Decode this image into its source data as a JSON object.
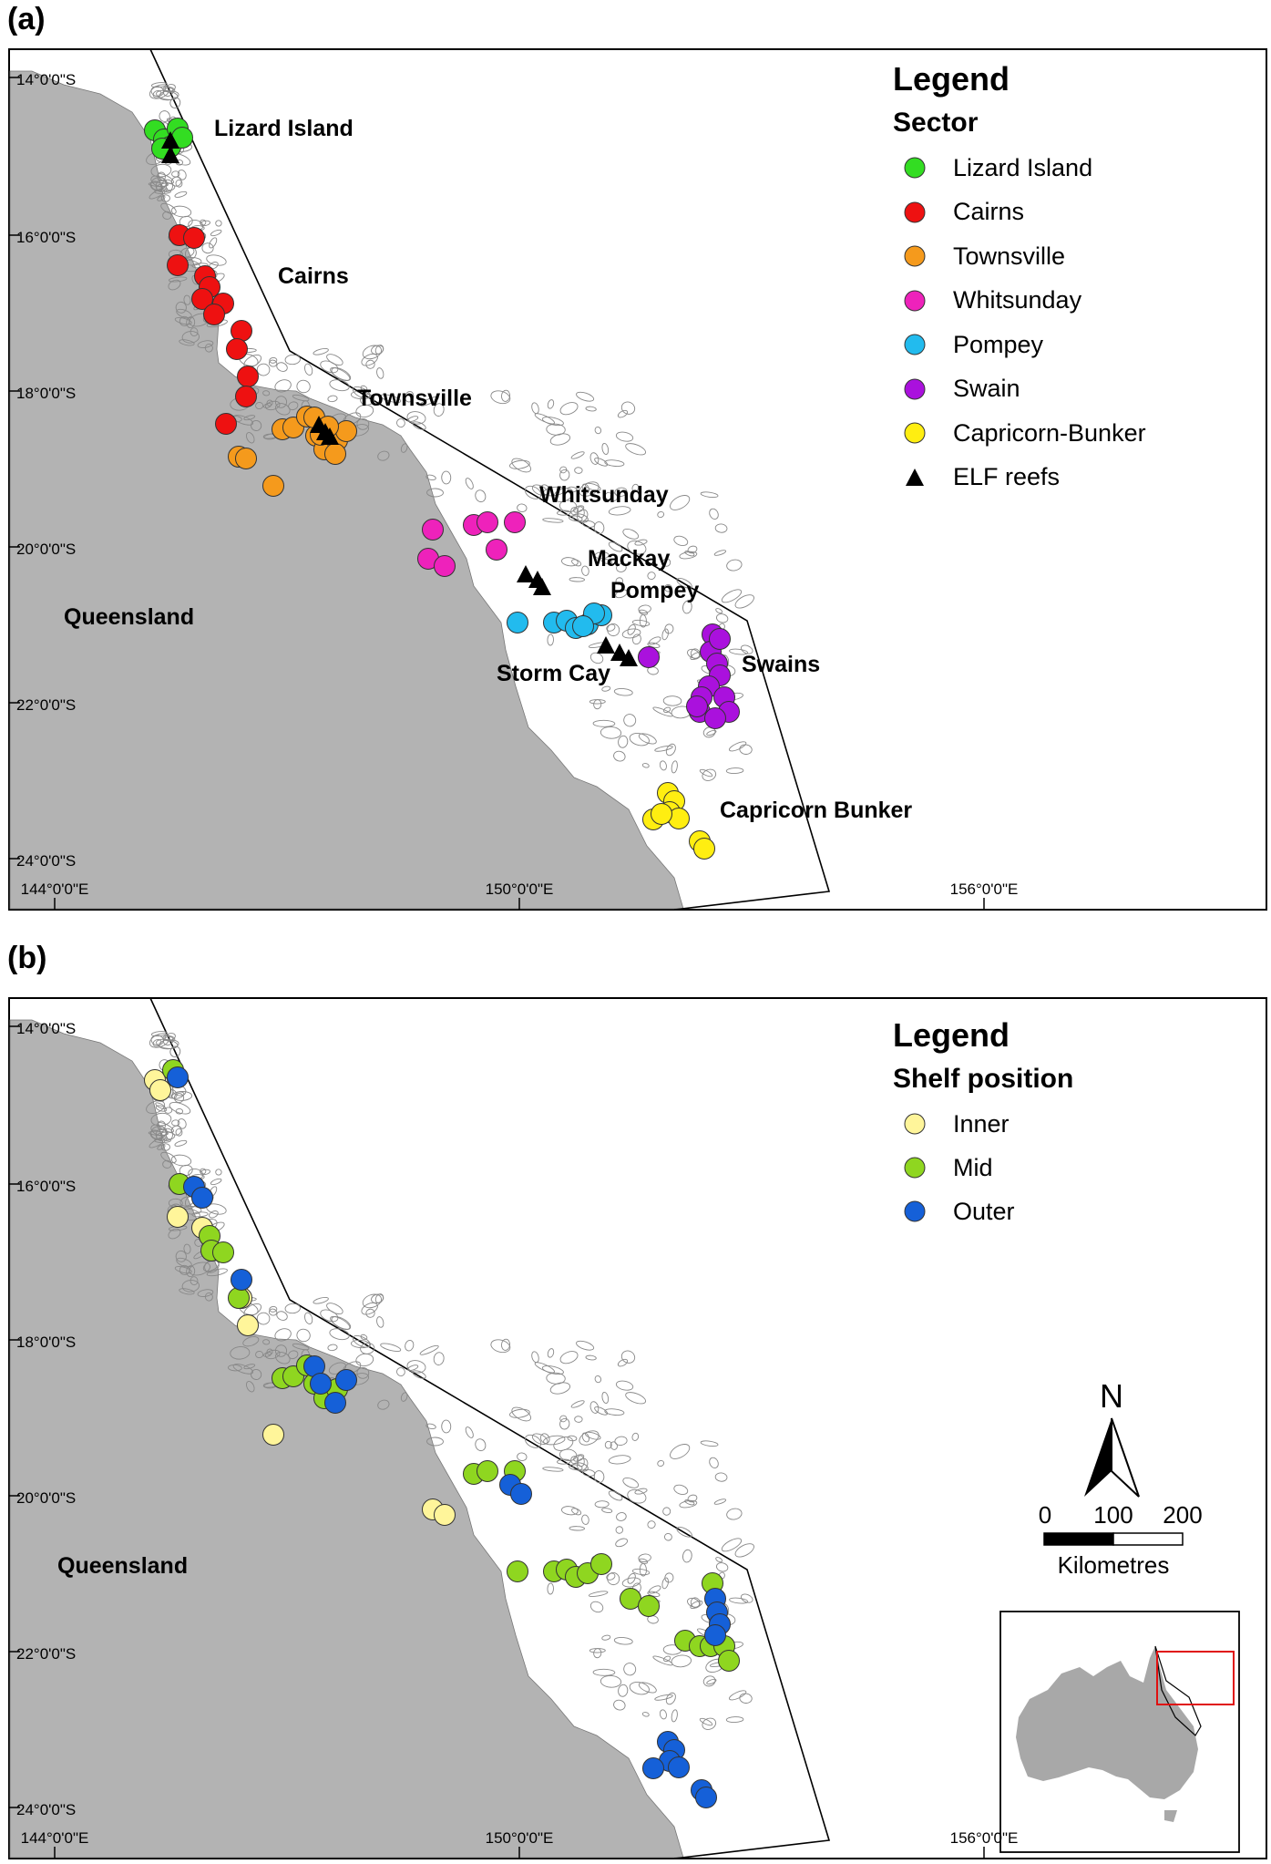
{
  "panel_a": {
    "label": "(a)",
    "legend_title": "Legend",
    "legend_subtitle": "Sector",
    "legend_items": [
      {
        "label": "Lizard Island",
        "color": "#33dd22",
        "shape": "circle"
      },
      {
        "label": "Cairns",
        "color": "#ee1111",
        "shape": "circle"
      },
      {
        "label": "Townsville",
        "color": "#f59a1c",
        "shape": "circle"
      },
      {
        "label": "Whitsunday",
        "color": "#ee22bb",
        "shape": "circle"
      },
      {
        "label": "Pompey",
        "color": "#22bbee",
        "shape": "circle"
      },
      {
        "label": "Swain",
        "color": "#aa11dd",
        "shape": "circle"
      },
      {
        "label": "Capricorn-Bunker",
        "color": "#ffee11",
        "shape": "circle"
      },
      {
        "label": "ELF reefs",
        "color": "#000000",
        "shape": "triangle"
      }
    ],
    "place_labels": [
      "Lizard Island",
      "Cairns",
      "Townsville",
      "Whitsunday",
      "Mackay",
      "Pompey",
      "Storm Cay",
      "Swains",
      "Capricorn Bunker",
      "Queensland"
    ]
  },
  "panel_b": {
    "label": "(b)",
    "legend_title": "Legend",
    "legend_subtitle": "Shelf position",
    "legend_items": [
      {
        "label": "Inner",
        "color": "#fff59a",
        "shape": "circle"
      },
      {
        "label": "Mid",
        "color": "#8fd620",
        "shape": "circle"
      },
      {
        "label": "Outer",
        "color": "#1560d8",
        "shape": "circle"
      }
    ],
    "place_labels": [
      "Queensland"
    ],
    "north_label": "N",
    "scale_ticks": [
      "0",
      "100",
      "200"
    ],
    "scale_unit": "Kilometres"
  },
  "axes": {
    "lat_labels": [
      "14°0'0\"S",
      "16°0'0\"S",
      "18°0'0\"S",
      "20°0'0\"S",
      "22°0'0\"S",
      "24°0'0\"S"
    ],
    "lon_labels": [
      "144°0'0\"E",
      "150°0'0\"E",
      "156°0'0\"E"
    ]
  }
}
